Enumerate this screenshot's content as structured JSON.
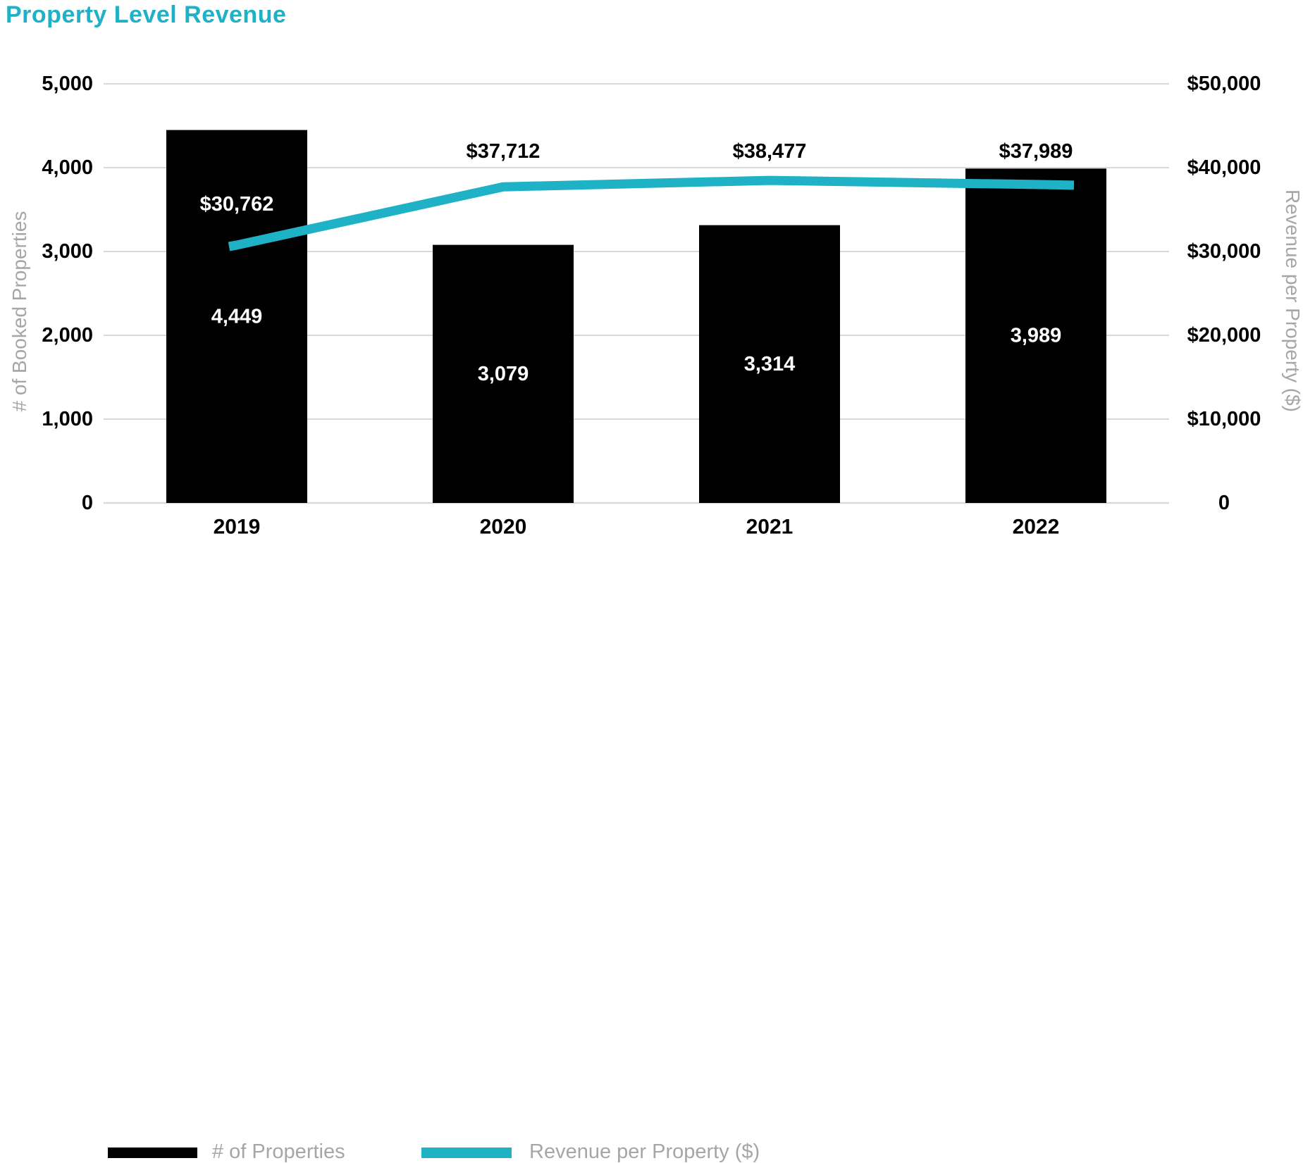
{
  "title": "Property Level Revenue",
  "colors": {
    "accent": "#1fb2c6",
    "bar": "#000000",
    "tick_text": "#000000",
    "muted": "#a6a6a6",
    "gridline": "#d9d9d9",
    "bar_label_text": "#ffffff"
  },
  "chart_data": {
    "type": "bar",
    "subtype": "combo-bar-line",
    "title": "Property Level Revenue",
    "categories": [
      "2019",
      "2020",
      "2021",
      "2022"
    ],
    "series": [
      {
        "name": "# of Properties",
        "type": "bar",
        "axis": "left",
        "color": "#000000",
        "values": [
          4449,
          3079,
          3314,
          3989
        ],
        "labels": [
          "4,449",
          "3,079",
          "3,314",
          "3,989"
        ]
      },
      {
        "name": "Revenue per Property ($)",
        "type": "line",
        "axis": "right",
        "color": "#1fb2c6",
        "values": [
          30762,
          37712,
          38477,
          37989
        ],
        "labels": [
          "$30,762",
          "$37,712",
          "$38,477",
          "$37,989"
        ]
      }
    ],
    "left_axis": {
      "title": "# of Booked Properties",
      "range": [
        0,
        5000
      ],
      "tick_step": 1000,
      "ticks": [
        "0",
        "1,000",
        "2,000",
        "3,000",
        "4,000",
        "5,000"
      ]
    },
    "right_axis": {
      "title": "Revenue per Property ($)",
      "range": [
        0,
        50000
      ],
      "tick_step": 10000,
      "ticks": [
        "0",
        "$10,000",
        "$20,000",
        "$30,000",
        "$40,000",
        "$50,000"
      ]
    },
    "grid": true,
    "legend_position": "bottom"
  },
  "legend": {
    "items": [
      {
        "label": "# of Properties",
        "color": "#000000"
      },
      {
        "label": "Revenue per Property ($)",
        "color": "#1fb2c6"
      }
    ]
  }
}
